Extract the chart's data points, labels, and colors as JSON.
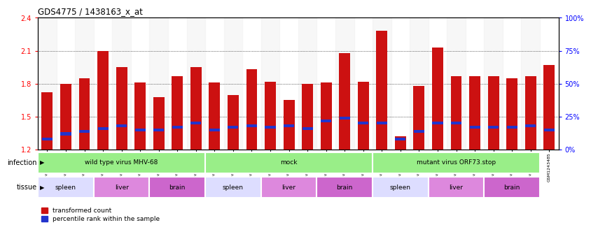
{
  "title": "GDS4775 / 1438163_x_at",
  "samples": [
    "GSM1243471",
    "GSM1243472",
    "GSM1243473",
    "GSM1243462",
    "GSM1243463",
    "GSM1243464",
    "GSM1243480",
    "GSM1243481",
    "GSM1243482",
    "GSM1243468",
    "GSM1243469",
    "GSM1243470",
    "GSM1243458",
    "GSM1243459",
    "GSM1243460",
    "GSM1243461",
    "GSM1243477",
    "GSM1243478",
    "GSM1243479",
    "GSM1243474",
    "GSM1243475",
    "GSM1243476",
    "GSM1243465",
    "GSM1243466",
    "GSM1243467",
    "GSM1243483",
    "GSM1243484",
    "GSM1243485"
  ],
  "bar_heights": [
    1.72,
    1.8,
    1.85,
    2.1,
    1.95,
    1.81,
    1.68,
    1.87,
    1.95,
    1.81,
    1.7,
    1.93,
    1.82,
    1.65,
    1.8,
    1.81,
    2.08,
    1.82,
    2.28,
    1.32,
    1.78,
    2.13,
    1.87,
    1.87,
    1.87,
    1.85,
    1.87,
    1.97
  ],
  "percentile_values": [
    8,
    12,
    14,
    16,
    18,
    15,
    15,
    17,
    20,
    15,
    17,
    18,
    17,
    18,
    16,
    22,
    24,
    20,
    20,
    8,
    14,
    20,
    20,
    17,
    17,
    17,
    18,
    15
  ],
  "ymin": 1.2,
  "ymax": 2.4,
  "yright_min": 0,
  "yright_max": 100,
  "yticks_left": [
    1.2,
    1.5,
    1.8,
    2.1,
    2.4
  ],
  "yticks_right": [
    0,
    25,
    50,
    75,
    100
  ],
  "bar_color": "#cc1111",
  "blue_color": "#2233cc",
  "infection_color": "#99ee88",
  "spleen_color": "#ddddff",
  "liver_color": "#dd88dd",
  "brain_color": "#cc66cc",
  "tissue_groups": [
    {
      "label": "spleen",
      "start": 0,
      "end": 3
    },
    {
      "label": "liver",
      "start": 3,
      "end": 6
    },
    {
      "label": "brain",
      "start": 6,
      "end": 9
    },
    {
      "label": "spleen",
      "start": 9,
      "end": 12
    },
    {
      "label": "liver",
      "start": 12,
      "end": 15
    },
    {
      "label": "brain",
      "start": 15,
      "end": 18
    },
    {
      "label": "spleen",
      "start": 18,
      "end": 21
    },
    {
      "label": "liver",
      "start": 21,
      "end": 24
    },
    {
      "label": "brain",
      "start": 24,
      "end": 27
    }
  ],
  "infection_groups": [
    {
      "label": "wild type virus MHV-68",
      "start": 0,
      "end": 9
    },
    {
      "label": "mock",
      "start": 9,
      "end": 18
    },
    {
      "label": "mutant virus ORF73.stop",
      "start": 18,
      "end": 27
    }
  ]
}
